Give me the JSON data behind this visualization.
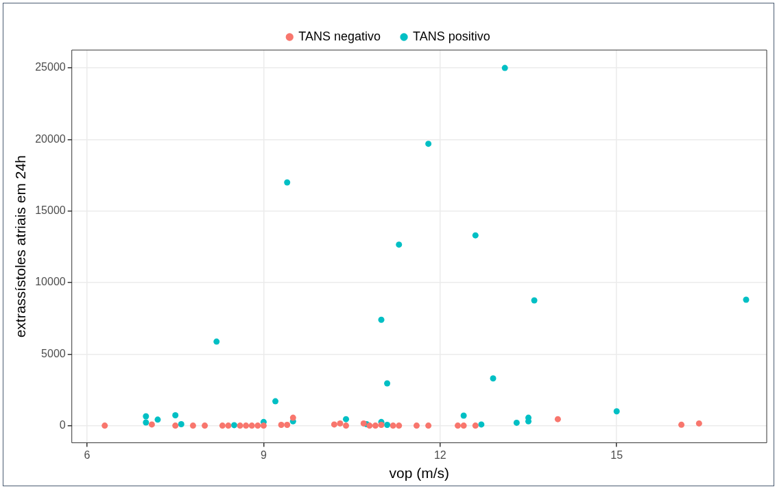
{
  "chart_data": {
    "type": "scatter",
    "xlabel": "vop (m/s)",
    "ylabel": "extrassístoles atriais em 24h",
    "xlim": [
      5.74,
      17.55
    ],
    "xticks": [
      6,
      9,
      12,
      15
    ],
    "ylim": [
      -1200,
      26250
    ],
    "yticks": [
      0,
      5000,
      10000,
      15000,
      20000,
      25000
    ],
    "grid": true,
    "legend": "top",
    "marker": "circle",
    "series": [
      {
        "name": "TANS negativo",
        "color": "#f8766d",
        "x": [
          6.3,
          7.1,
          7.5,
          7.8,
          8.0,
          8.3,
          8.4,
          8.6,
          8.7,
          8.8,
          8.9,
          9.0,
          9.3,
          9.4,
          9.5,
          10.2,
          10.3,
          10.4,
          10.7,
          10.8,
          10.9,
          11.0,
          11.2,
          11.3,
          11.6,
          11.8,
          12.3,
          12.4,
          12.6,
          14.0,
          16.1,
          16.4
        ],
        "values": [
          0,
          80,
          0,
          0,
          0,
          0,
          0,
          0,
          0,
          0,
          0,
          0,
          50,
          50,
          550,
          80,
          150,
          0,
          150,
          0,
          0,
          50,
          0,
          0,
          0,
          0,
          0,
          0,
          0,
          450,
          60,
          150
        ]
      },
      {
        "name": "TANS positivo",
        "color": "#00bfc4",
        "x": [
          7.0,
          7.0,
          7.2,
          7.5,
          7.6,
          8.2,
          8.5,
          9.0,
          9.2,
          9.4,
          9.5,
          10.4,
          10.75,
          11.0,
          11.0,
          11.1,
          11.1,
          11.3,
          11.8,
          12.4,
          12.6,
          12.7,
          12.9,
          13.1,
          13.3,
          13.5,
          13.5,
          13.6,
          15.0,
          17.2
        ],
        "values": [
          650,
          220,
          420,
          720,
          100,
          5870,
          30,
          250,
          1700,
          17000,
          300,
          450,
          100,
          250,
          7400,
          50,
          2950,
          12650,
          19700,
          700,
          13300,
          80,
          3300,
          25000,
          200,
          300,
          550,
          8750,
          1000,
          8800
        ]
      }
    ]
  }
}
